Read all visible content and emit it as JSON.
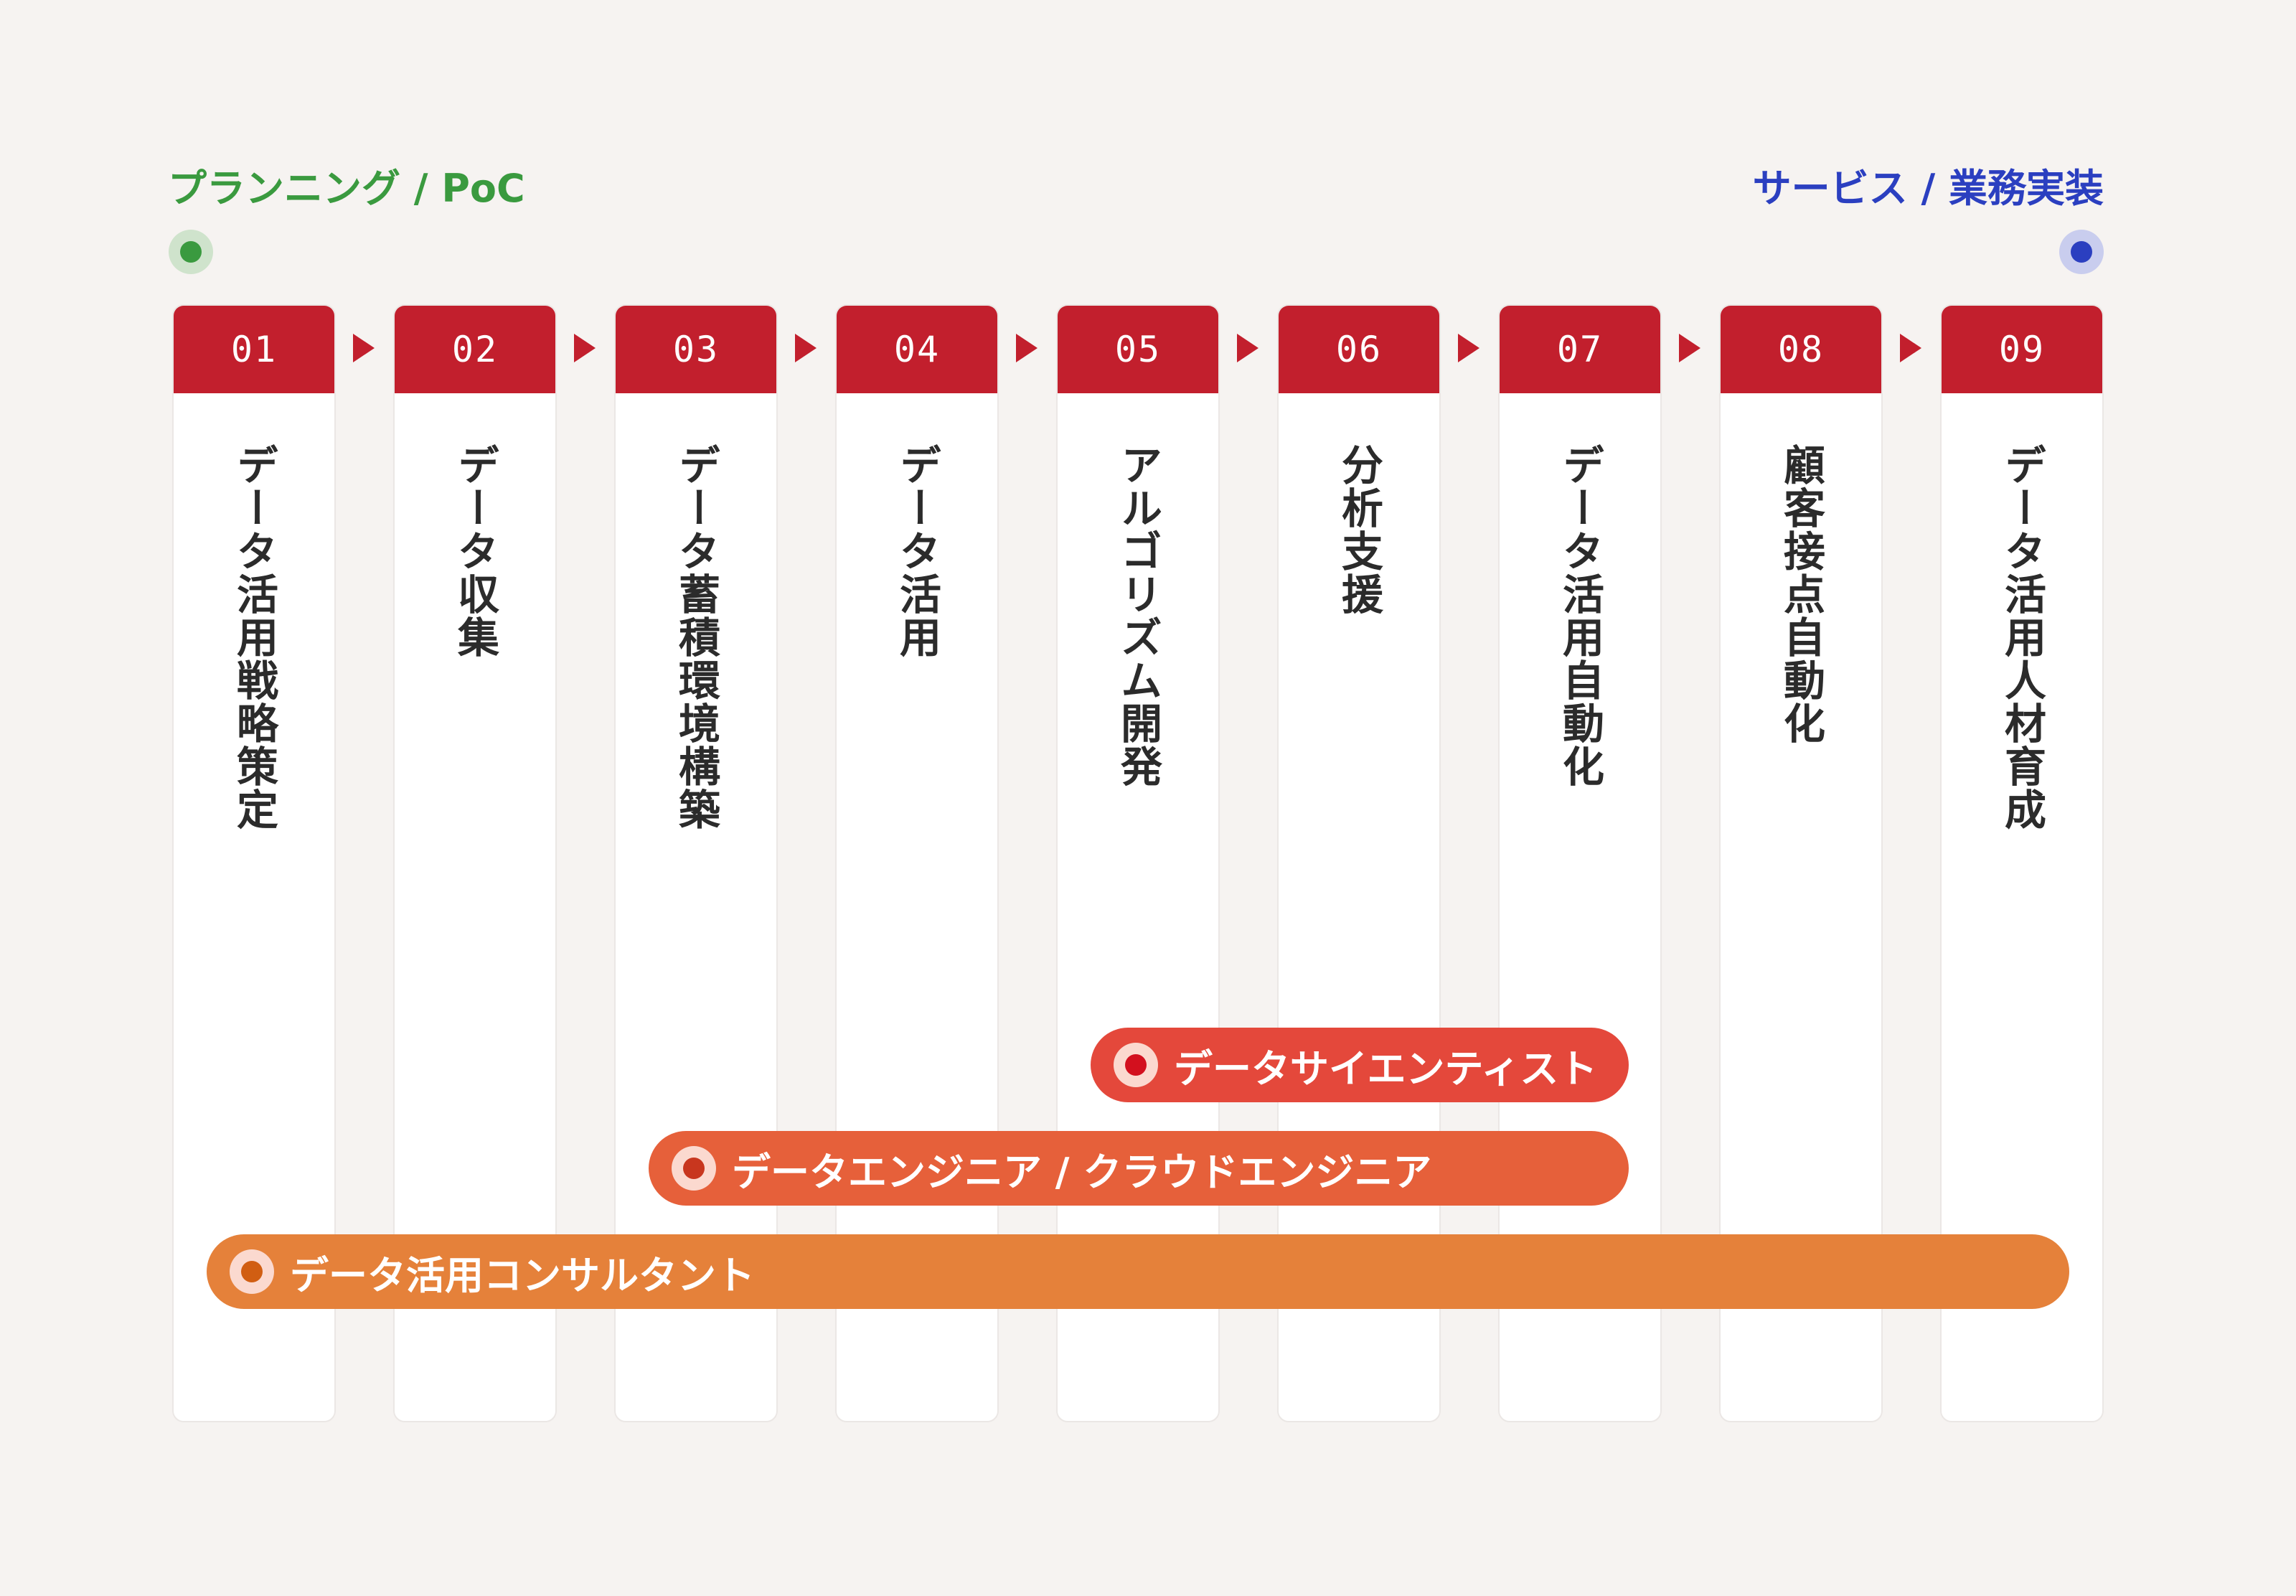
{
  "phase_start": "プランニング / PoC",
  "phase_end": "サービス / 業務実装",
  "colors": {
    "phase_start": "#3a9a3f",
    "phase_end": "#2b3fc0",
    "step_header": "#c21f2d"
  },
  "steps": [
    {
      "num": "01",
      "label": "データ活用戦略策定"
    },
    {
      "num": "02",
      "label": "データ収集"
    },
    {
      "num": "03",
      "label": "データ蓄積環境構築"
    },
    {
      "num": "04",
      "label": "データ活用"
    },
    {
      "num": "05",
      "label": "アルゴリズム開発"
    },
    {
      "num": "06",
      "label": "分析支援"
    },
    {
      "num": "07",
      "label": "データ活用自動化"
    },
    {
      "num": "08",
      "label": "顧客接点自動化"
    },
    {
      "num": "09",
      "label": "データ活用人材育成"
    }
  ],
  "roles": [
    {
      "label": "データサイエンティスト",
      "color": "#e4483b",
      "dot": "#d3101e"
    },
    {
      "label": "データエンジニア / クラウドエンジニア",
      "color": "#e6603a",
      "dot": "#c8361e"
    },
    {
      "label": "データ活用コンサルタント",
      "color": "#e5813a",
      "dot": "#d15e12"
    }
  ]
}
